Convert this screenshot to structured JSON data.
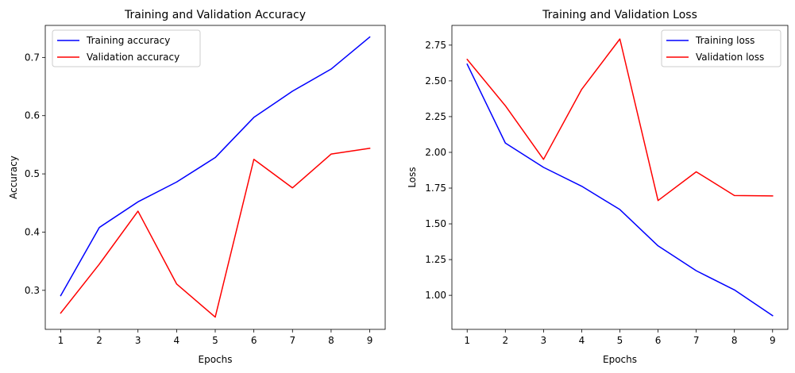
{
  "chart_data": [
    {
      "type": "line",
      "title": "Training and Validation Accuracy",
      "xlabel": "Epochs",
      "ylabel": "Accuracy",
      "x": [
        1,
        2,
        3,
        4,
        5,
        6,
        7,
        8,
        9
      ],
      "xticks": [
        "1",
        "2",
        "3",
        "4",
        "5",
        "6",
        "7",
        "8",
        "9"
      ],
      "xlim": [
        0.6,
        9.4
      ],
      "ylim": [
        0.233,
        0.755
      ],
      "yticks": [
        0.3,
        0.4,
        0.5,
        0.6,
        0.7
      ],
      "ytick_labels": [
        "0.3",
        "0.4",
        "0.5",
        "0.6",
        "0.7"
      ],
      "legend": "upper-left",
      "grid": false,
      "series": [
        {
          "name": "Training accuracy",
          "color": "#0000ff",
          "values": [
            0.291,
            0.408,
            0.452,
            0.486,
            0.528,
            0.597,
            0.642,
            0.68,
            0.735
          ]
        },
        {
          "name": "Validation accuracy",
          "color": "#ff0000",
          "values": [
            0.261,
            0.345,
            0.436,
            0.311,
            0.254,
            0.525,
            0.476,
            0.534,
            0.544
          ]
        }
      ]
    },
    {
      "type": "line",
      "title": "Training and Validation Loss",
      "xlabel": "Epochs",
      "ylabel": "Loss",
      "x": [
        1,
        2,
        3,
        4,
        5,
        6,
        7,
        8,
        9
      ],
      "xticks": [
        "1",
        "2",
        "3",
        "4",
        "5",
        "6",
        "7",
        "8",
        "9"
      ],
      "xlim": [
        0.6,
        9.4
      ],
      "ylim": [
        0.762,
        2.888
      ],
      "yticks": [
        1.0,
        1.25,
        1.5,
        1.75,
        2.0,
        2.25,
        2.5,
        2.75
      ],
      "ytick_labels": [
        "1.00",
        "1.25",
        "1.50",
        "1.75",
        "2.00",
        "2.25",
        "2.50",
        "2.75"
      ],
      "legend": "upper-right",
      "grid": false,
      "series": [
        {
          "name": "Training loss",
          "color": "#0000ff",
          "values": [
            2.617,
            2.065,
            1.895,
            1.763,
            1.6,
            1.346,
            1.172,
            1.038,
            0.858
          ]
        },
        {
          "name": "Validation loss",
          "color": "#ff0000",
          "values": [
            2.65,
            2.326,
            1.951,
            2.441,
            2.793,
            1.663,
            1.864,
            1.698,
            1.695
          ]
        }
      ]
    }
  ]
}
